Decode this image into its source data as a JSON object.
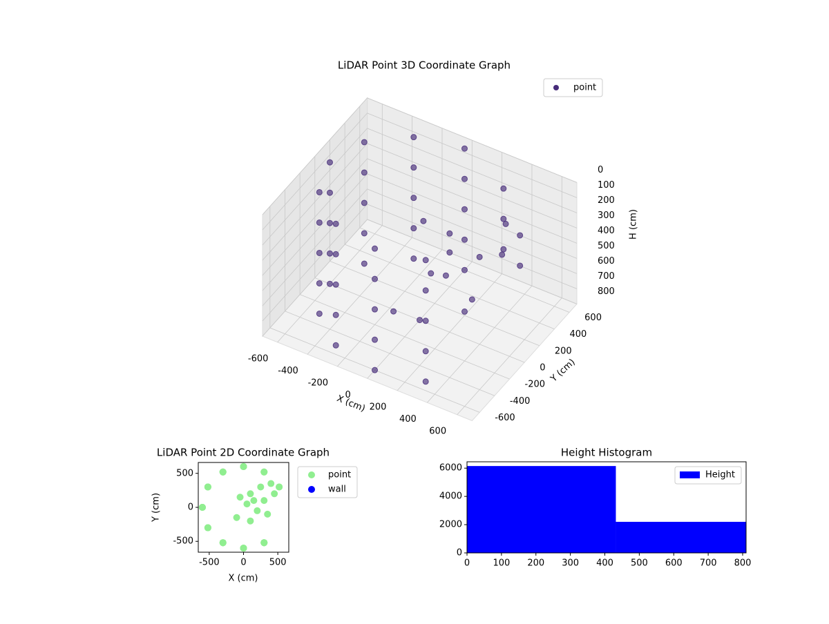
{
  "chart_data": [
    {
      "type": "scatter3d",
      "title": "LiDAR Point 3D Coordinate Graph",
      "xlabel": "X (cm)",
      "ylabel": "Y (cm)",
      "zlabel": "H (cm)",
      "xlim": [
        -700,
        700
      ],
      "ylim": [
        -700,
        700
      ],
      "zlim": [
        800,
        0
      ],
      "xticks": [
        -600,
        -400,
        -200,
        0,
        200,
        400,
        600
      ],
      "yticks": [
        -600,
        -400,
        -200,
        0,
        200,
        400,
        600
      ],
      "zticks": [
        0,
        100,
        200,
        300,
        400,
        500,
        600,
        700,
        800
      ],
      "legend": "upper right",
      "grid": true,
      "series": [
        {
          "name": "point",
          "color": "#472c7a",
          "x": [
            0,
            0,
            0,
            0,
            0,
            -300,
            -300,
            -300,
            -300,
            -300,
            -520,
            -520,
            -520,
            -520,
            -520,
            -600,
            -600,
            -600,
            -600,
            -600,
            -520,
            -520,
            -520,
            -520,
            -520,
            -300,
            -300,
            -300,
            -300,
            -300,
            0,
            0,
            0,
            0,
            0,
            300,
            300,
            300,
            300,
            300,
            300,
            300,
            300,
            520,
            520,
            100,
            150,
            -50,
            200,
            250,
            -100,
            300,
            100,
            400,
            450,
            350,
            50
          ],
          "y": [
            600,
            600,
            600,
            600,
            600,
            520,
            520,
            520,
            520,
            520,
            300,
            300,
            300,
            300,
            300,
            0,
            0,
            0,
            0,
            0,
            -300,
            -300,
            -300,
            -300,
            -300,
            -520,
            -520,
            -520,
            -520,
            -520,
            -600,
            -600,
            -600,
            -600,
            -600,
            -520,
            -520,
            -520,
            -520,
            -520,
            520,
            520,
            520,
            300,
            300,
            200,
            100,
            150,
            -50,
            300,
            -150,
            100,
            -200,
            350,
            200,
            -100,
            50
          ],
          "z": [
            0,
            200,
            400,
            600,
            800,
            0,
            200,
            400,
            600,
            800,
            0,
            200,
            400,
            600,
            800,
            0,
            200,
            400,
            600,
            800,
            0,
            200,
            400,
            600,
            800,
            0,
            200,
            400,
            600,
            800,
            0,
            200,
            400,
            600,
            800,
            0,
            200,
            400,
            600,
            800,
            100,
            300,
            500,
            200,
            400,
            300,
            350,
            250,
            400,
            450,
            700,
            600,
            650,
            200,
            300,
            550,
            500
          ]
        }
      ]
    },
    {
      "type": "scatter",
      "title": "LiDAR Point 2D Coordinate Graph",
      "xlabel": "X (cm)",
      "ylabel": "Y (cm)",
      "xlim": [
        -660,
        660
      ],
      "ylim": [
        -660,
        660
      ],
      "xticks": [
        -500,
        0,
        500
      ],
      "yticks": [
        -500,
        0,
        500
      ],
      "legend": "outside right",
      "series": [
        {
          "name": "point",
          "color": "#90ee90",
          "x": [
            0,
            0,
            0,
            0,
            0,
            -300,
            -300,
            -300,
            -300,
            -300,
            -520,
            -520,
            -520,
            -520,
            -520,
            -600,
            -600,
            -600,
            -600,
            -600,
            -520,
            -520,
            -520,
            -520,
            -520,
            -300,
            -300,
            -300,
            -300,
            -300,
            0,
            0,
            0,
            0,
            0,
            300,
            300,
            300,
            300,
            300,
            300,
            300,
            300,
            520,
            520,
            100,
            150,
            -50,
            200,
            250,
            -100,
            300,
            100,
            400,
            450,
            350,
            50
          ],
          "y": [
            600,
            600,
            600,
            600,
            600,
            520,
            520,
            520,
            520,
            520,
            300,
            300,
            300,
            300,
            300,
            0,
            0,
            0,
            0,
            0,
            -300,
            -300,
            -300,
            -300,
            -300,
            -520,
            -520,
            -520,
            -520,
            -520,
            -600,
            -600,
            -600,
            -600,
            -600,
            -520,
            -520,
            -520,
            -520,
            -520,
            520,
            520,
            520,
            300,
            300,
            200,
            100,
            150,
            -50,
            300,
            -150,
            100,
            -200,
            350,
            200,
            -100,
            50
          ]
        },
        {
          "name": "wall",
          "color": "#0000ff",
          "x": [],
          "y": []
        }
      ]
    },
    {
      "type": "histogram",
      "title": "Height Histogram",
      "bins": [
        0,
        432,
        810
      ],
      "counts": [
        6150,
        2200
      ],
      "series_name": "Height",
      "color": "#0000ff",
      "legend": "upper right",
      "xlim": [
        0,
        810
      ],
      "ylim": [
        0,
        6450
      ],
      "xticks": [
        0,
        100,
        200,
        300,
        400,
        500,
        600,
        700,
        800
      ],
      "yticks": [
        0,
        2000,
        4000,
        6000
      ]
    }
  ]
}
